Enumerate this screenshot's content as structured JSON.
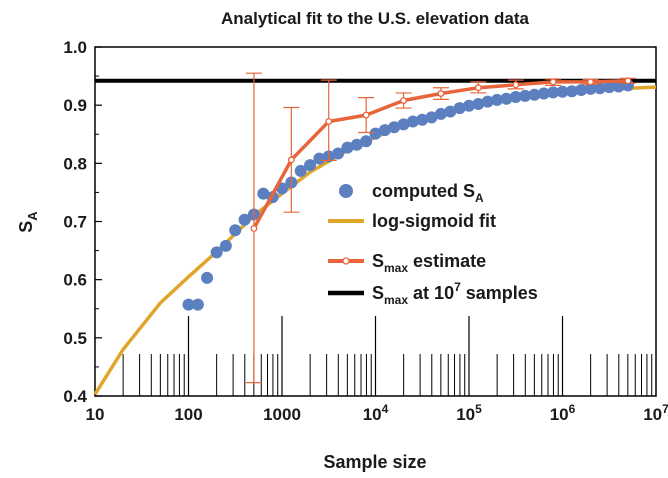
{
  "chart_data": {
    "type": "scatter",
    "title": "Analytical fit to the U.S. elevation data",
    "xlabel": "Sample size",
    "ylabel": {
      "main": "S",
      "sub": "A"
    },
    "x_scale": "log",
    "xlim": [
      10,
      10000000
    ],
    "ylim": [
      0.4,
      1.0
    ],
    "x_ticks": [
      {
        "value": 10,
        "base": "10",
        "exp": ""
      },
      {
        "value": 100,
        "base": "100",
        "exp": ""
      },
      {
        "value": 1000,
        "base": "1000",
        "exp": ""
      },
      {
        "value": 10000,
        "base": "10",
        "exp": "4"
      },
      {
        "value": 100000,
        "base": "10",
        "exp": "5"
      },
      {
        "value": 1000000,
        "base": "10",
        "exp": "6"
      },
      {
        "value": 10000000,
        "base": "10",
        "exp": "7"
      }
    ],
    "y_ticks": [
      "0.4",
      "0.5",
      "0.6",
      "0.7",
      "0.8",
      "0.9",
      "1.0"
    ],
    "grid": false,
    "legend_position": "center-right",
    "legend": [
      {
        "main": "computed S",
        "sub": "A",
        "after": "",
        "sup": "",
        "tail": ""
      },
      {
        "main": "log-sigmoid fit",
        "sub": "",
        "after": "",
        "sup": "",
        "tail": ""
      },
      {
        "main": "S",
        "sub": "max",
        "after": " estimate",
        "sup": "",
        "tail": ""
      },
      {
        "main": "S",
        "sub": "max",
        "after": " at 10",
        "sup": "7",
        "tail": " samples"
      }
    ],
    "colors": {
      "computed": "#5b7fbf",
      "fit": "#e0a52b",
      "estimate": "#e8643a",
      "limit": "#000000"
    },
    "series": [
      {
        "name": "computed S",
        "kind": "points",
        "x": [
          100,
          126,
          158,
          200,
          251,
          316,
          398,
          501,
          631,
          794,
          1000,
          1259,
          1585,
          1995,
          2512,
          3162,
          3981,
          5012,
          6310,
          7943,
          10000,
          12589,
          15849,
          19953,
          25119,
          31623,
          39811,
          50119,
          63096,
          79433,
          100000,
          125893,
          158489,
          199526,
          251189,
          316228,
          398107,
          501187,
          630957,
          794328,
          1000000,
          1258925,
          1584893,
          1995262,
          2511886,
          3162278,
          3981072,
          5011872
        ],
        "y": [
          0.557,
          0.557,
          0.603,
          0.647,
          0.658,
          0.685,
          0.703,
          0.712,
          0.748,
          0.742,
          0.757,
          0.767,
          0.787,
          0.797,
          0.808,
          0.812,
          0.817,
          0.827,
          0.832,
          0.838,
          0.851,
          0.857,
          0.862,
          0.867,
          0.872,
          0.875,
          0.879,
          0.885,
          0.889,
          0.895,
          0.899,
          0.902,
          0.906,
          0.909,
          0.911,
          0.914,
          0.916,
          0.918,
          0.92,
          0.922,
          0.923,
          0.924,
          0.926,
          0.928,
          0.929,
          0.931,
          0.932,
          0.934
        ]
      },
      {
        "name": "log-sigmoid fit",
        "kind": "curve",
        "x": [
          10,
          20,
          50,
          100,
          200,
          500,
          1000,
          2000,
          5000,
          10000,
          20000,
          50000,
          100000,
          200000,
          500000,
          1000000,
          2000000,
          5000000,
          10000000
        ],
        "y": [
          0.403,
          0.48,
          0.56,
          0.605,
          0.648,
          0.71,
          0.748,
          0.785,
          0.822,
          0.845,
          0.866,
          0.886,
          0.898,
          0.908,
          0.916,
          0.921,
          0.925,
          0.929,
          0.931
        ]
      },
      {
        "name": "S estimate",
        "kind": "line-errorbar",
        "x": [
          501,
          1259,
          3162,
          7943,
          19953,
          50119,
          125893,
          316228,
          794328,
          1995262,
          5011872
        ],
        "y": [
          0.688,
          0.806,
          0.872,
          0.883,
          0.908,
          0.92,
          0.93,
          0.935,
          0.94,
          0.94,
          0.942
        ],
        "err_low": [
          0.423,
          0.716,
          0.805,
          0.853,
          0.895,
          0.91,
          0.921,
          0.928,
          0.934,
          0.936,
          0.938
        ],
        "err_high": [
          0.955,
          0.896,
          0.943,
          0.913,
          0.921,
          0.93,
          0.94,
          0.943,
          0.945,
          0.944,
          0.946
        ]
      },
      {
        "name": "S at 10^7 samples",
        "kind": "hline",
        "y": 0.942
      }
    ],
    "rug_x": [
      20,
      30,
      40,
      50,
      60,
      70,
      80,
      90,
      100,
      200,
      300,
      400,
      500,
      600,
      700,
      800,
      900,
      1000,
      2000,
      3000,
      4000,
      5000,
      6000,
      7000,
      8000,
      9000,
      10000,
      20000,
      30000,
      40000,
      50000,
      60000,
      70000,
      80000,
      90000,
      100000,
      200000,
      300000,
      400000,
      500000,
      600000,
      700000,
      800000,
      900000,
      1000000,
      2000000,
      3000000,
      4000000,
      5000000,
      6000000,
      7000000,
      8000000,
      9000000,
      10000000
    ]
  }
}
